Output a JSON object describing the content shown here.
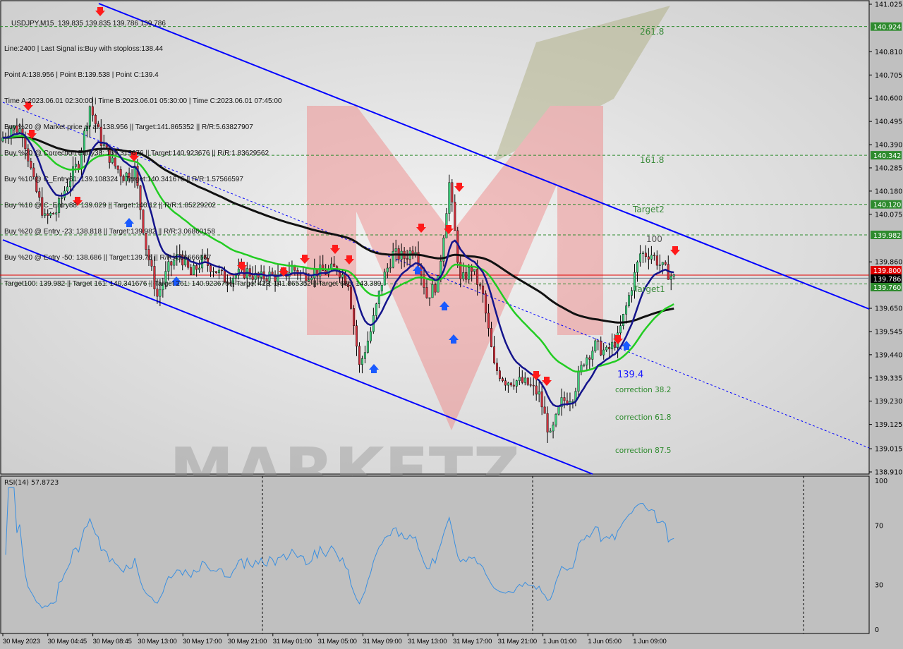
{
  "header": {
    "symbol_line": "USDJPY,M15  139.835 139.835 139.786 139.786",
    "info_lines": [
      "Line:2400 | Last Signal is:Buy with stoploss:138.44",
      "Point A:138.956 | Point B:139.538 | Point C:139.4",
      "Time A:2023.06.01 02:30:00 | Time B:2023.06.01 05:30:00 | Time C:2023.06.01 07:45:00",
      "Buy %20 @ Market price or at: 138.956 || Target:141.865352 || R/R:5.63827907",
      "Buy %20 @ Correction Entry38: 139.315676 || Target:140.923676 || R/R:1.83629562",
      "Buy %10 @ C_Entry61: 139.108324 || Target:140.341676 || R/R:1.57566597",
      "Buy %10 @ C_Entry88: 139.029 || Target:140.12 || R/R:1.85229202",
      "Buy %20 @ Entry -23: 138.818 || Target:139.982 || R/R:3.06860158",
      "Buy %20 @ Entry -50: 138.686 || Target:139.76 || R/R:4.86666667",
      "Target100: 139.982 || Target 161: 140.341676 || Target 261: 140.923676 || Target 423: 141.865352 || Target 685: 143.389"
    ]
  },
  "chart_data": {
    "type": "candlestick",
    "price_axis": {
      "min": 138.91,
      "max": 141.025,
      "ticks": [
        "141.025",
        "140.810",
        "140.705",
        "140.600",
        "140.495",
        "140.390",
        "140.285",
        "140.180",
        "140.075",
        "139.860",
        "139.650",
        "139.545",
        "139.440",
        "139.335",
        "139.230",
        "139.125",
        "139.015",
        "138.910"
      ]
    },
    "time_ticks": [
      "30 May 2023",
      "30 May 04:45",
      "30 May 08:45",
      "30 May 13:00",
      "30 May 17:00",
      "30 May 21:00",
      "31 May 01:00",
      "31 May 05:00",
      "31 May 09:00",
      "31 May 13:00",
      "31 May 17:00",
      "31 May 21:00",
      "1 Jun 01:00",
      "1 Jun 05:00",
      "1 Jun 09:00"
    ],
    "hourly_close": [
      140.406,
      140.47,
      140.454,
      140.215,
      140.055,
      140.087,
      140.215,
      140.31,
      140.566,
      140.406,
      140.31,
      140.247,
      140.279,
      139.928,
      139.704,
      139.832,
      139.896,
      139.8,
      139.864,
      139.832,
      139.784,
      139.8,
      139.816,
      139.784,
      139.8,
      139.784,
      139.832,
      139.8,
      139.816,
      139.816,
      139.832,
      139.768,
      139.385,
      139.545,
      139.768,
      139.896,
      139.88,
      139.928,
      139.704,
      139.768,
      140.215,
      139.768,
      139.832,
      139.704,
      139.385,
      139.322,
      139.322,
      139.306,
      139.258,
      139.066,
      139.226,
      139.258,
      139.417,
      139.481,
      139.449,
      139.513,
      139.704,
      139.896,
      139.896,
      139.832,
      139.786
    ],
    "levels": [
      {
        "price": 140.924,
        "label": "140.924",
        "color": "#2e8b2e"
      },
      {
        "price": 140.342,
        "label": "140.342",
        "color": "#2e8b2e"
      },
      {
        "price": 140.12,
        "label": "140.120",
        "color": "#2e8b2e"
      },
      {
        "price": 139.982,
        "label": "139.982",
        "color": "#2e8b2e"
      },
      {
        "price": 139.76,
        "label": "139.760",
        "color": "#2e8b2e"
      }
    ],
    "ask_label": "139.800",
    "bid_label": "139.786",
    "annotations": [
      "261.8",
      "161.8",
      "Target2",
      "100",
      "Target1",
      "139.4",
      "correction 38.2",
      "correction 61.8",
      "correction 87.5"
    ],
    "rsi": {
      "label": "RSI(14) 57.8723",
      "ticks": [
        "100",
        "70",
        "30",
        "0"
      ]
    },
    "watermark": "MARKETZ",
    "colors": {
      "bull": "#3cd07c",
      "bear": "#d0303c",
      "channel": "#0000ff",
      "ma_long": "#111111",
      "ma_mid": "#22cc22",
      "ma_fast": "#14148c",
      "rsi": "#3a8fe0"
    }
  }
}
